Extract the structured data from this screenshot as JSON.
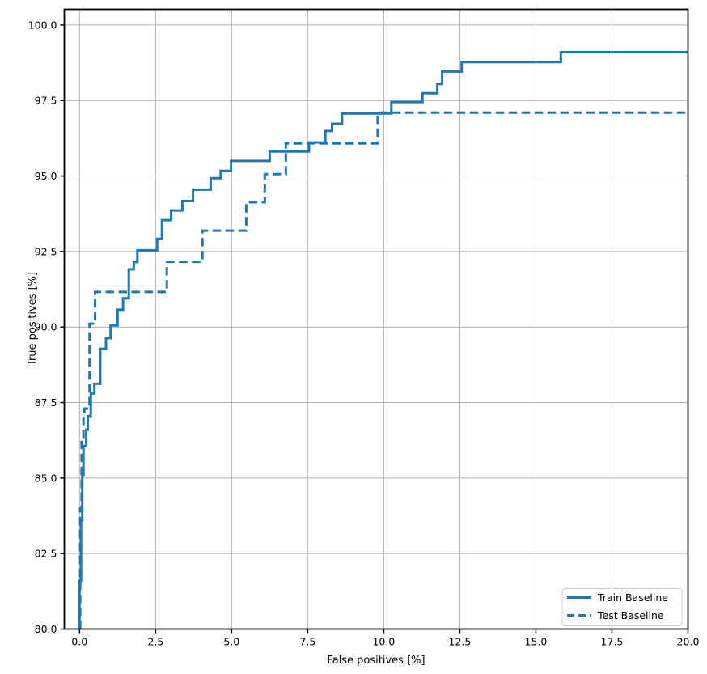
{
  "chart_data": {
    "type": "line",
    "subtype": "step-roc",
    "title": "",
    "xlabel": "False positives [%]",
    "ylabel": "True positives [%]",
    "xlim": [
      -0.5,
      20.0
    ],
    "ylim": [
      80.0,
      100.52
    ],
    "xticks": [
      0.0,
      2.5,
      5.0,
      7.5,
      10.0,
      12.5,
      15.0,
      17.5,
      20.0
    ],
    "xtick_labels": [
      "0.0",
      "2.5",
      "5.0",
      "7.5",
      "10.0",
      "12.5",
      "15.0",
      "17.5",
      "20.0"
    ],
    "yticks": [
      80.0,
      82.5,
      85.0,
      87.5,
      90.0,
      92.5,
      95.0,
      97.5,
      100.0
    ],
    "ytick_labels": [
      "80.0",
      "82.5",
      "85.0",
      "87.5",
      "90.0",
      "92.5",
      "95.0",
      "97.5",
      "100.0"
    ],
    "grid": true,
    "legend_position": "lower right",
    "series": [
      {
        "name": "Train Baseline",
        "style": "solid",
        "color": "#1f77b4",
        "points": [
          [
            0.0,
            80.0
          ],
          [
            0.0,
            81.6
          ],
          [
            0.05,
            81.6
          ],
          [
            0.05,
            83.6
          ],
          [
            0.09,
            83.6
          ],
          [
            0.09,
            85.1
          ],
          [
            0.13,
            85.1
          ],
          [
            0.13,
            86.06
          ],
          [
            0.22,
            86.06
          ],
          [
            0.22,
            86.6
          ],
          [
            0.27,
            86.6
          ],
          [
            0.27,
            87.05
          ],
          [
            0.37,
            87.05
          ],
          [
            0.37,
            87.8
          ],
          [
            0.49,
            87.8
          ],
          [
            0.49,
            88.12
          ],
          [
            0.68,
            88.12
          ],
          [
            0.68,
            89.28
          ],
          [
            0.87,
            89.28
          ],
          [
            0.87,
            89.63
          ],
          [
            1.02,
            89.63
          ],
          [
            1.02,
            90.05
          ],
          [
            1.25,
            90.05
          ],
          [
            1.25,
            90.57
          ],
          [
            1.43,
            90.57
          ],
          [
            1.43,
            90.95
          ],
          [
            1.62,
            90.95
          ],
          [
            1.62,
            91.91
          ],
          [
            1.78,
            91.91
          ],
          [
            1.78,
            92.15
          ],
          [
            1.9,
            92.15
          ],
          [
            1.9,
            92.54
          ],
          [
            2.55,
            92.54
          ],
          [
            2.55,
            92.92
          ],
          [
            2.71,
            92.92
          ],
          [
            2.71,
            93.54
          ],
          [
            3.01,
            93.54
          ],
          [
            3.01,
            93.86
          ],
          [
            3.38,
            93.86
          ],
          [
            3.38,
            94.17
          ],
          [
            3.73,
            94.17
          ],
          [
            3.73,
            94.55
          ],
          [
            4.31,
            94.55
          ],
          [
            4.31,
            94.93
          ],
          [
            4.64,
            94.93
          ],
          [
            4.64,
            95.17
          ],
          [
            4.98,
            95.17
          ],
          [
            4.98,
            95.5
          ],
          [
            6.25,
            95.5
          ],
          [
            6.25,
            95.81
          ],
          [
            7.54,
            95.81
          ],
          [
            7.54,
            96.11
          ],
          [
            8.08,
            96.11
          ],
          [
            8.08,
            96.49
          ],
          [
            8.3,
            96.49
          ],
          [
            8.3,
            96.73
          ],
          [
            8.63,
            96.73
          ],
          [
            8.63,
            97.07
          ],
          [
            10.25,
            97.07
          ],
          [
            10.25,
            97.45
          ],
          [
            11.27,
            97.45
          ],
          [
            11.27,
            97.74
          ],
          [
            11.76,
            97.74
          ],
          [
            11.76,
            98.05
          ],
          [
            11.92,
            98.05
          ],
          [
            11.92,
            98.46
          ],
          [
            12.56,
            98.46
          ],
          [
            12.56,
            98.77
          ],
          [
            15.82,
            98.77
          ],
          [
            15.82,
            99.1
          ],
          [
            20.0,
            99.1
          ]
        ]
      },
      {
        "name": "Test Baseline",
        "style": "dashed",
        "color": "#1f77b4",
        "points": [
          [
            0.02,
            80.0
          ],
          [
            0.02,
            84.0
          ],
          [
            0.07,
            84.0
          ],
          [
            0.07,
            86.25
          ],
          [
            0.13,
            86.25
          ],
          [
            0.13,
            87.13
          ],
          [
            0.16,
            87.13
          ],
          [
            0.16,
            87.3
          ],
          [
            0.33,
            87.3
          ],
          [
            0.33,
            90.11
          ],
          [
            0.51,
            90.11
          ],
          [
            0.51,
            91.16
          ],
          [
            2.87,
            91.16
          ],
          [
            2.87,
            92.16
          ],
          [
            4.04,
            92.16
          ],
          [
            4.04,
            93.19
          ],
          [
            5.48,
            93.19
          ],
          [
            5.48,
            94.13
          ],
          [
            6.09,
            94.13
          ],
          [
            6.09,
            95.06
          ],
          [
            6.78,
            95.06
          ],
          [
            6.78,
            96.08
          ],
          [
            9.8,
            96.08
          ],
          [
            9.8,
            97.1
          ],
          [
            20.0,
            97.1
          ]
        ]
      }
    ]
  },
  "style": {
    "line_color": "#1f77b4",
    "grid_color": "#b0b0b0",
    "spine_color": "#000000",
    "tick_color": "#000000",
    "legend_border_color": "#cccccc",
    "background": "#ffffff",
    "line_width": 3,
    "dash_pattern": "10.5 5.5"
  }
}
